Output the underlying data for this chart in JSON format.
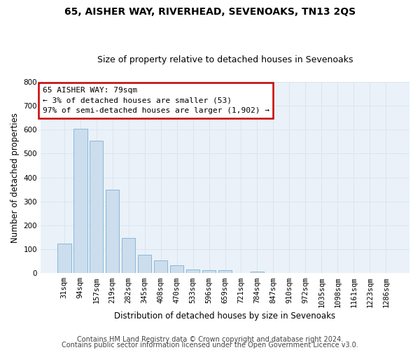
{
  "title1": "65, AISHER WAY, RIVERHEAD, SEVENOAKS, TN13 2QS",
  "title2": "Size of property relative to detached houses in Sevenoaks",
  "xlabel": "Distribution of detached houses by size in Sevenoaks",
  "ylabel": "Number of detached properties",
  "categories": [
    "31sqm",
    "94sqm",
    "157sqm",
    "219sqm",
    "282sqm",
    "345sqm",
    "408sqm",
    "470sqm",
    "533sqm",
    "596sqm",
    "659sqm",
    "721sqm",
    "784sqm",
    "847sqm",
    "910sqm",
    "972sqm",
    "1035sqm",
    "1098sqm",
    "1161sqm",
    "1223sqm",
    "1286sqm"
  ],
  "values": [
    125,
    603,
    553,
    348,
    148,
    76,
    55,
    33,
    15,
    13,
    13,
    0,
    7,
    0,
    0,
    0,
    0,
    0,
    0,
    0,
    0
  ],
  "bar_color": "#ccdded",
  "bar_edge_color": "#88b8d8",
  "ylim": [
    0,
    800
  ],
  "yticks": [
    0,
    100,
    200,
    300,
    400,
    500,
    600,
    700,
    800
  ],
  "grid_color": "#d8e6f0",
  "bg_color": "#eaf1f8",
  "annotation_text": "65 AISHER WAY: 79sqm\n← 3% of detached houses are smaller (53)\n97% of semi-detached houses are larger (1,902) →",
  "annotation_box_color": "#ffffff",
  "annotation_box_edge_color": "#cc0000",
  "footer1": "Contains HM Land Registry data © Crown copyright and database right 2024.",
  "footer2": "Contains public sector information licensed under the Open Government Licence v3.0.",
  "title1_fontsize": 10,
  "title2_fontsize": 9,
  "axis_label_fontsize": 8.5,
  "tick_fontsize": 7.5,
  "annotation_fontsize": 8,
  "footer_fontsize": 7
}
